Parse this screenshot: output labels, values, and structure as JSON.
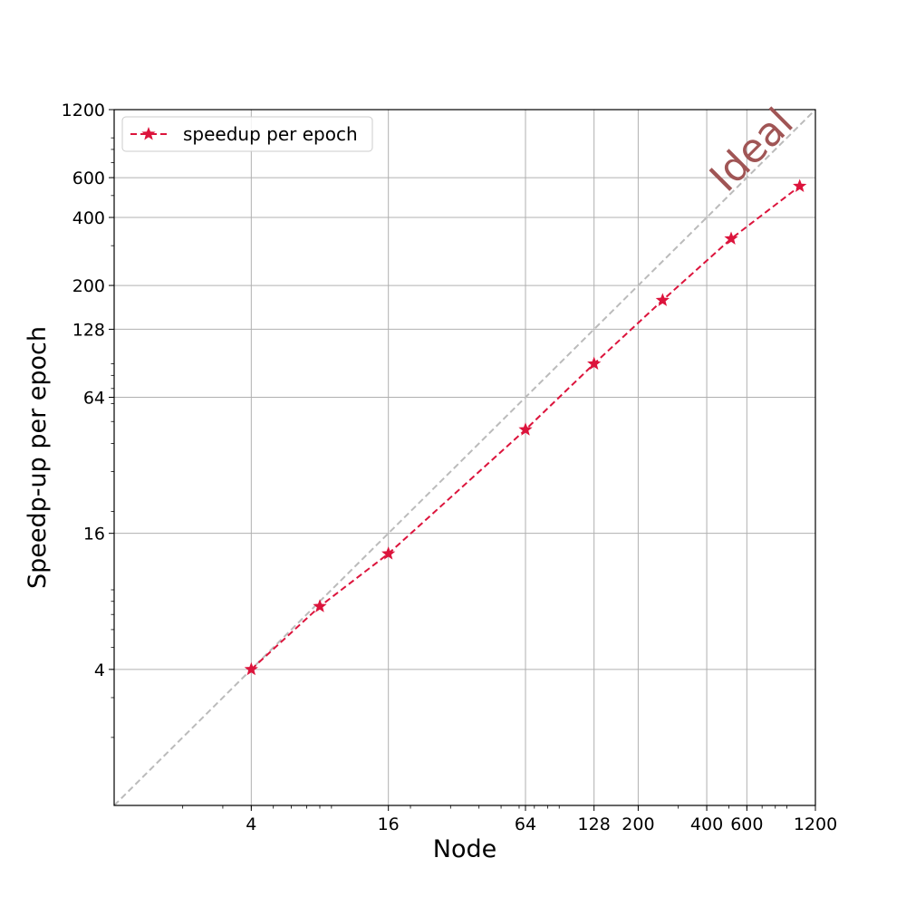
{
  "chart_data": {
    "type": "line",
    "xscale": "log2",
    "yscale": "log2",
    "xlabel": "Node",
    "ylabel": "Speedp-up per epoch",
    "xlim": [
      1,
      1200
    ],
    "ylim": [
      1,
      1200
    ],
    "x_ticks": [
      4,
      16,
      64,
      128,
      200,
      400,
      600,
      1200
    ],
    "y_ticks": [
      4,
      16,
      64,
      128,
      200,
      400,
      600,
      1200
    ],
    "grid": true,
    "legend_position": "top-left",
    "series": [
      {
        "name": "speedup per epoch",
        "color": "#dc143c",
        "linestyle": "dashed",
        "marker": "star",
        "points": [
          {
            "x": 4,
            "y": 4
          },
          {
            "x": 8,
            "y": 7.6
          },
          {
            "x": 16,
            "y": 13
          },
          {
            "x": 64,
            "y": 46
          },
          {
            "x": 128,
            "y": 90
          },
          {
            "x": 256,
            "y": 172
          },
          {
            "x": 512,
            "y": 322
          },
          {
            "x": 1024,
            "y": 550
          }
        ]
      }
    ],
    "reference_line": {
      "label": "Ideal",
      "color": "#bbbbbb",
      "text_color": "#a05555",
      "linestyle": "dashed",
      "points": [
        {
          "x": 1,
          "y": 1
        },
        {
          "x": 1200,
          "y": 1200
        }
      ]
    }
  }
}
